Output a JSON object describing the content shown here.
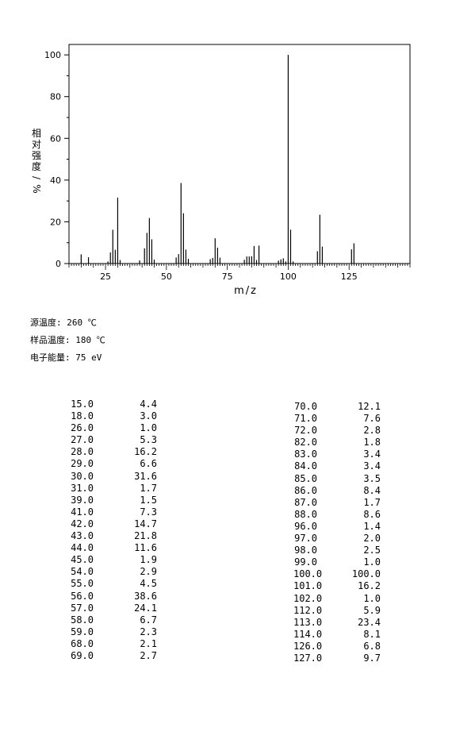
{
  "chart_data": {
    "type": "bar",
    "xlabel": "m/z",
    "ylabel": "相对强度/%",
    "xlim": [
      10,
      150
    ],
    "ylim": [
      0,
      105
    ],
    "xticks": [
      25,
      50,
      75,
      100,
      125
    ],
    "yticks": [
      0,
      20,
      40,
      60,
      80,
      100
    ],
    "grid": false,
    "peaks": [
      {
        "mz": 15.0,
        "intensity": 4.4
      },
      {
        "mz": 18.0,
        "intensity": 3.0
      },
      {
        "mz": 26.0,
        "intensity": 1.0
      },
      {
        "mz": 27.0,
        "intensity": 5.3
      },
      {
        "mz": 28.0,
        "intensity": 16.2
      },
      {
        "mz": 29.0,
        "intensity": 6.6
      },
      {
        "mz": 30.0,
        "intensity": 31.6
      },
      {
        "mz": 31.0,
        "intensity": 1.7
      },
      {
        "mz": 39.0,
        "intensity": 1.5
      },
      {
        "mz": 41.0,
        "intensity": 7.3
      },
      {
        "mz": 42.0,
        "intensity": 14.7
      },
      {
        "mz": 43.0,
        "intensity": 21.8
      },
      {
        "mz": 44.0,
        "intensity": 11.6
      },
      {
        "mz": 45.0,
        "intensity": 1.9
      },
      {
        "mz": 54.0,
        "intensity": 2.9
      },
      {
        "mz": 55.0,
        "intensity": 4.5
      },
      {
        "mz": 56.0,
        "intensity": 38.6
      },
      {
        "mz": 57.0,
        "intensity": 24.1
      },
      {
        "mz": 58.0,
        "intensity": 6.7
      },
      {
        "mz": 59.0,
        "intensity": 2.3
      },
      {
        "mz": 68.0,
        "intensity": 2.1
      },
      {
        "mz": 69.0,
        "intensity": 2.7
      },
      {
        "mz": 70.0,
        "intensity": 12.1
      },
      {
        "mz": 71.0,
        "intensity": 7.6
      },
      {
        "mz": 72.0,
        "intensity": 2.8
      },
      {
        "mz": 82.0,
        "intensity": 1.8
      },
      {
        "mz": 83.0,
        "intensity": 3.4
      },
      {
        "mz": 84.0,
        "intensity": 3.4
      },
      {
        "mz": 85.0,
        "intensity": 3.5
      },
      {
        "mz": 86.0,
        "intensity": 8.4
      },
      {
        "mz": 87.0,
        "intensity": 1.7
      },
      {
        "mz": 88.0,
        "intensity": 8.6
      },
      {
        "mz": 96.0,
        "intensity": 1.4
      },
      {
        "mz": 97.0,
        "intensity": 2.0
      },
      {
        "mz": 98.0,
        "intensity": 2.5
      },
      {
        "mz": 99.0,
        "intensity": 1.0
      },
      {
        "mz": 100.0,
        "intensity": 100.0
      },
      {
        "mz": 101.0,
        "intensity": 16.2
      },
      {
        "mz": 102.0,
        "intensity": 1.0
      },
      {
        "mz": 112.0,
        "intensity": 5.9
      },
      {
        "mz": 113.0,
        "intensity": 23.4
      },
      {
        "mz": 114.0,
        "intensity": 8.1
      },
      {
        "mz": 126.0,
        "intensity": 6.8
      },
      {
        "mz": 127.0,
        "intensity": 9.7
      }
    ]
  },
  "conditions": {
    "source_temp": "源温度: 260 ℃",
    "sample_temp": "样品温度: 180 ℃",
    "electron_energy": "电子能量: 75 eV"
  },
  "table": {
    "left": [
      [
        "15.0",
        "4.4"
      ],
      [
        "18.0",
        "3.0"
      ],
      [
        "26.0",
        "1.0"
      ],
      [
        "27.0",
        "5.3"
      ],
      [
        "28.0",
        "16.2"
      ],
      [
        "29.0",
        "6.6"
      ],
      [
        "30.0",
        "31.6"
      ],
      [
        "31.0",
        "1.7"
      ],
      [
        "39.0",
        "1.5"
      ],
      [
        "41.0",
        "7.3"
      ],
      [
        "42.0",
        "14.7"
      ],
      [
        "43.0",
        "21.8"
      ],
      [
        "44.0",
        "11.6"
      ],
      [
        "45.0",
        "1.9"
      ],
      [
        "54.0",
        "2.9"
      ],
      [
        "55.0",
        "4.5"
      ],
      [
        "56.0",
        "38.6"
      ],
      [
        "57.0",
        "24.1"
      ],
      [
        "58.0",
        "6.7"
      ],
      [
        "59.0",
        "2.3"
      ],
      [
        "68.0",
        "2.1"
      ],
      [
        "69.0",
        "2.7"
      ]
    ],
    "right": [
      [
        "70.0",
        "12.1"
      ],
      [
        "71.0",
        "7.6"
      ],
      [
        "72.0",
        "2.8"
      ],
      [
        "82.0",
        "1.8"
      ],
      [
        "83.0",
        "3.4"
      ],
      [
        "84.0",
        "3.4"
      ],
      [
        "85.0",
        "3.5"
      ],
      [
        "86.0",
        "8.4"
      ],
      [
        "87.0",
        "1.7"
      ],
      [
        "88.0",
        "8.6"
      ],
      [
        "96.0",
        "1.4"
      ],
      [
        "97.0",
        "2.0"
      ],
      [
        "98.0",
        "2.5"
      ],
      [
        "99.0",
        "1.0"
      ],
      [
        "100.0",
        "100.0"
      ],
      [
        "101.0",
        "16.2"
      ],
      [
        "102.0",
        "1.0"
      ],
      [
        "112.0",
        "5.9"
      ],
      [
        "113.0",
        "23.4"
      ],
      [
        "114.0",
        "8.1"
      ],
      [
        "126.0",
        "6.8"
      ],
      [
        "127.0",
        "9.7"
      ]
    ]
  }
}
